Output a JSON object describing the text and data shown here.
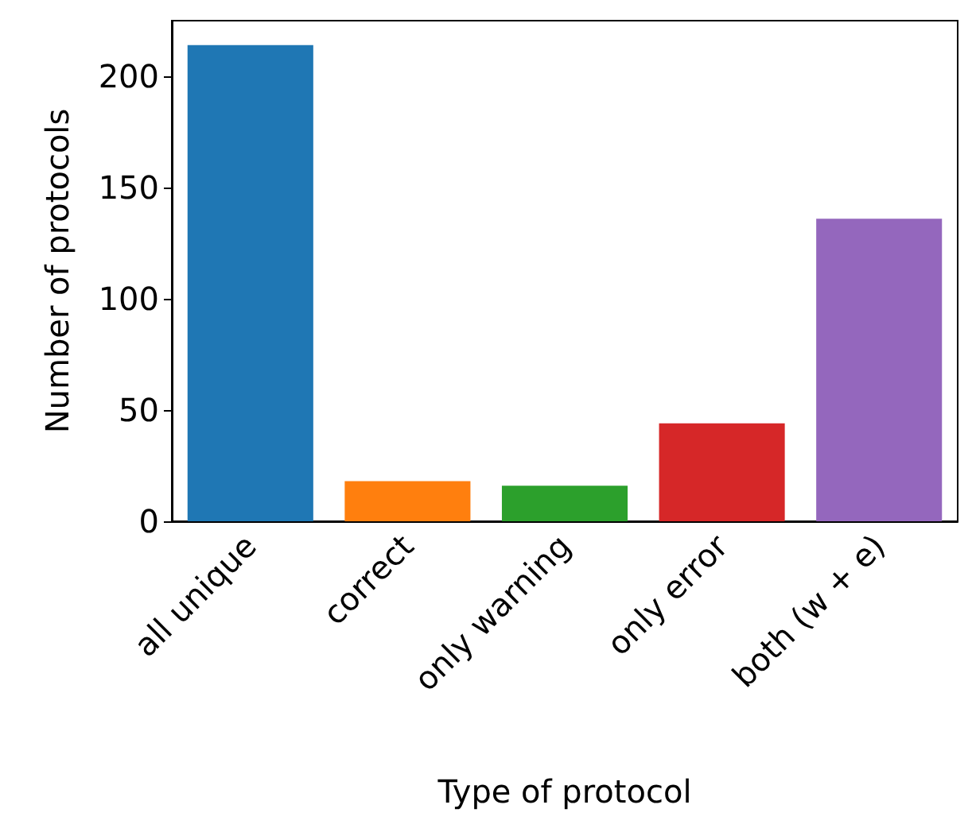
{
  "chart_data": {
    "type": "bar",
    "xlabel": "Type of protocol",
    "ylabel": "Number of protocols",
    "categories": [
      "all unique",
      "correct",
      "only warning",
      "only error",
      "both (w + e)"
    ],
    "values": [
      214,
      18,
      16,
      44,
      136
    ],
    "colors": [
      "#1f77b4",
      "#ff7f0e",
      "#2ca02c",
      "#d62728",
      "#9467bd"
    ],
    "ylim": [
      0,
      225
    ],
    "yticks": [
      0,
      50,
      100,
      150,
      200
    ]
  }
}
